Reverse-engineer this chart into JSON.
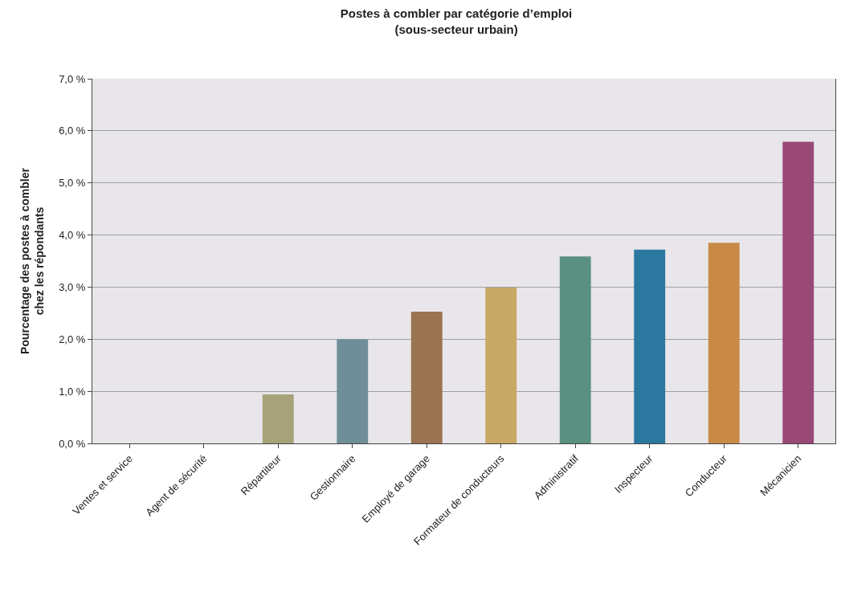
{
  "chart_data": {
    "type": "bar",
    "title": "Postes à combler par catégorie d’emploi\n(sous-secteur urbain)",
    "ylabel": "Pourcentage des postes à combler\nchez les répondants",
    "categories": [
      "Ventes et service",
      "Agent de sécurité",
      "Répartiteur",
      "Gestionnaire",
      "Employé de garage",
      "Formateur de conducteurs",
      "Administratif",
      "Inspecteur",
      "Conducteur",
      "Mécanicien"
    ],
    "values": [
      0,
      0,
      0.94,
      2.0,
      2.53,
      2.99,
      3.59,
      3.72,
      3.85,
      5.79
    ],
    "colors": [
      "#a8a27a",
      "#a8a27a",
      "#a8a27a",
      "#6f8e9a",
      "#9a7350",
      "#c8a865",
      "#5a9080",
      "#2a78a0",
      "#c98a45",
      "#9a4878"
    ],
    "ylim": [
      0,
      7
    ],
    "yticks": [
      {
        "value": 0,
        "label": "0,0 %"
      },
      {
        "value": 1,
        "label": "1,0 %"
      },
      {
        "value": 2,
        "label": "2,0 %"
      },
      {
        "value": 3,
        "label": "3,0 %"
      },
      {
        "value": 4,
        "label": "4,0 %"
      },
      {
        "value": 5,
        "label": "5,0 %"
      },
      {
        "value": 6,
        "label": "6,0 %"
      },
      {
        "value": 7,
        "label": "7,0 %"
      }
    ],
    "grid": "y"
  }
}
